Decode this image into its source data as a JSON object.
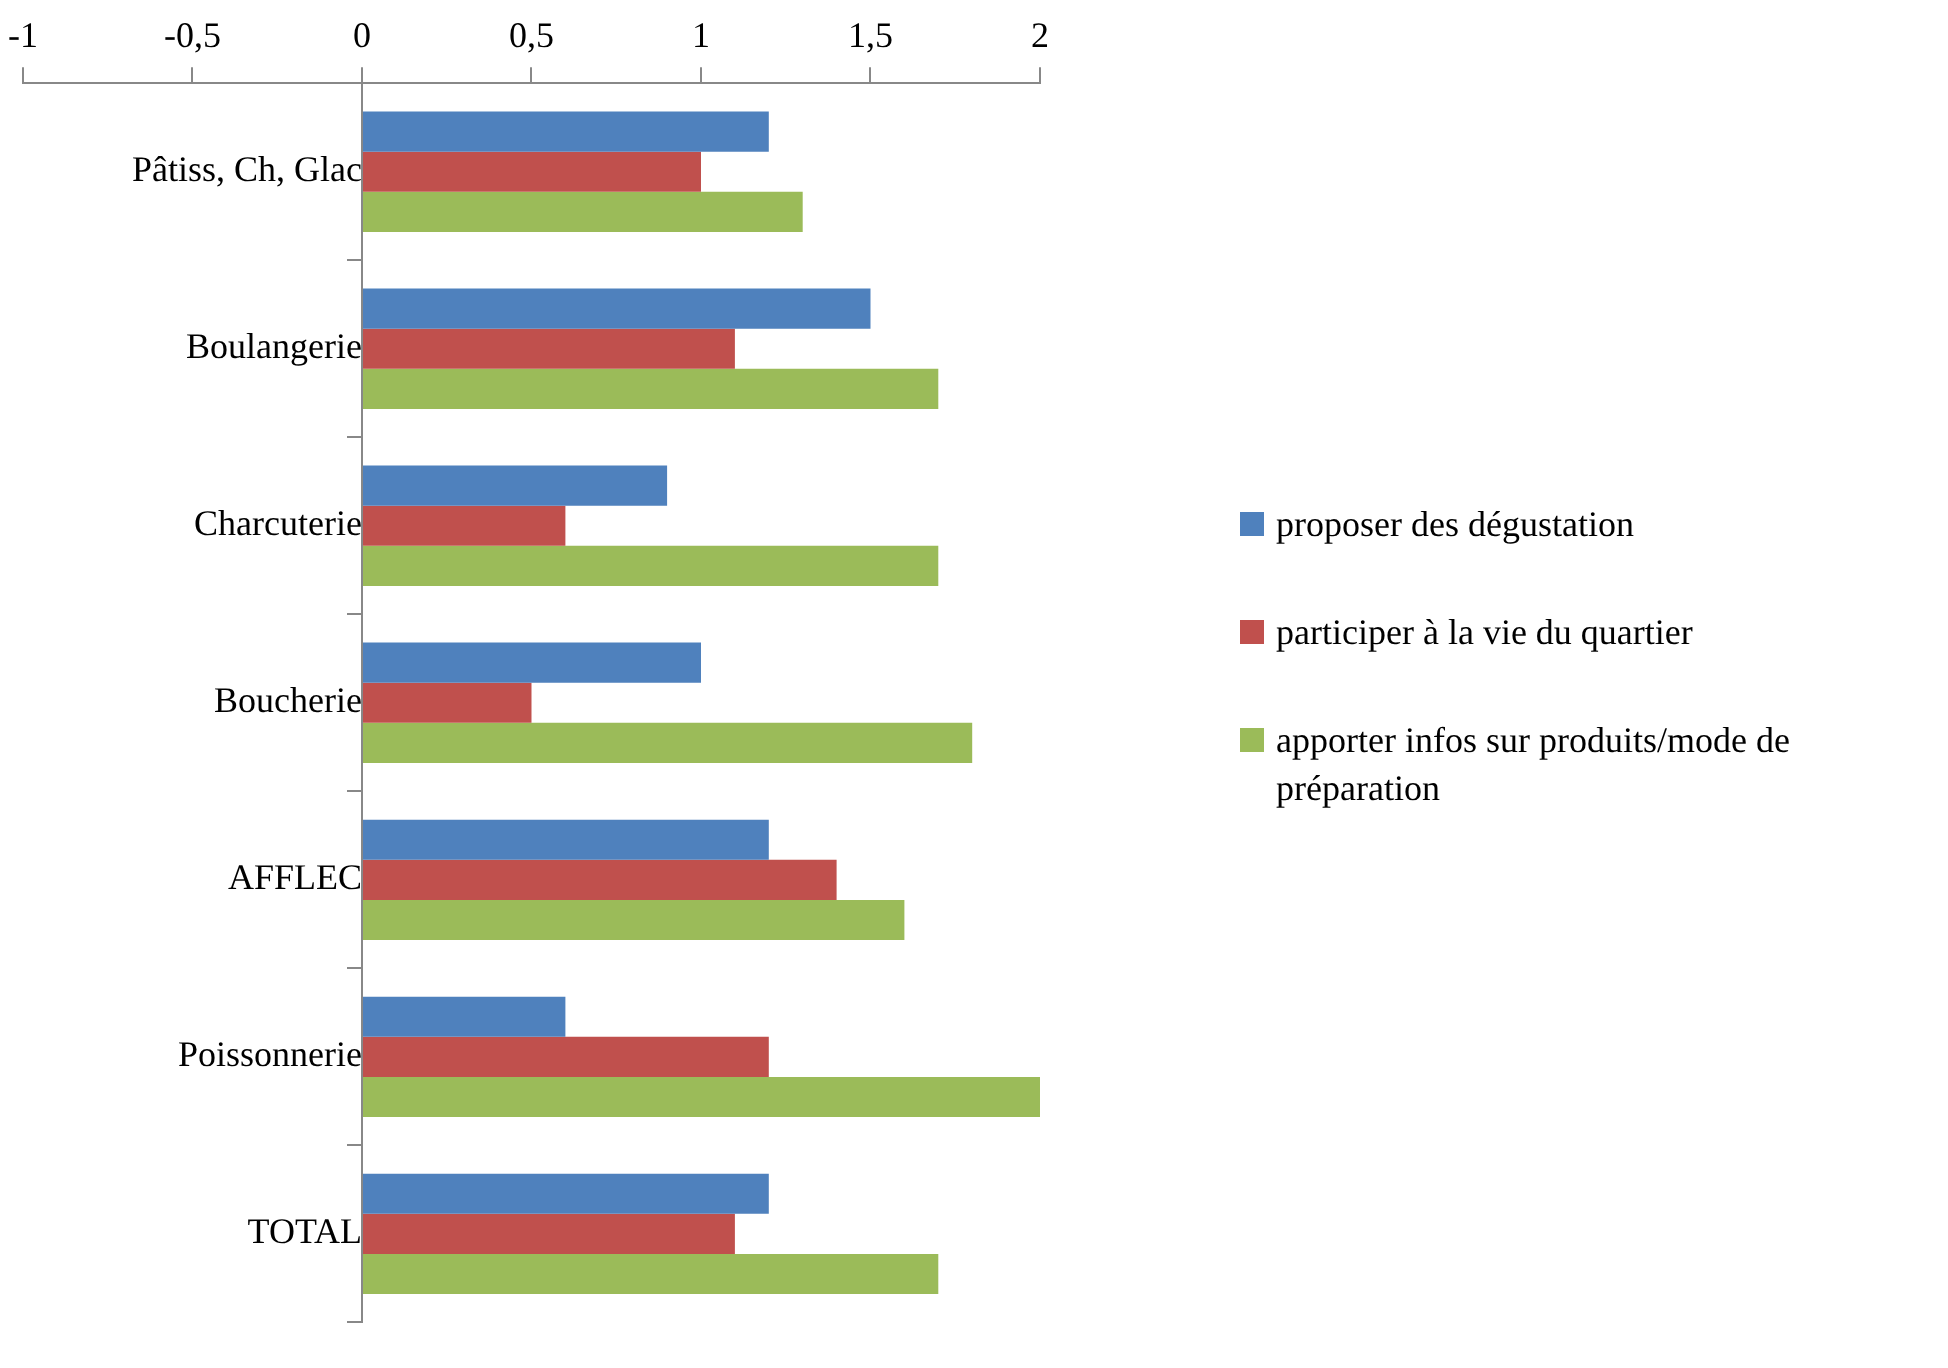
{
  "chart_data": {
    "type": "bar",
    "orientation": "horizontal",
    "categories": [
      "Pâtiss, Ch, Glac",
      "Boulangerie",
      "Charcuterie",
      "Boucherie",
      "AFFLEC",
      "Poissonnerie",
      "TOTAL"
    ],
    "series": [
      {
        "name": "proposer des dégustation",
        "color": "#4f81bd",
        "values": [
          1.2,
          1.5,
          0.9,
          1.0,
          1.2,
          0.6,
          1.2
        ]
      },
      {
        "name": "participer à la vie du quartier",
        "color": "#c0504d",
        "values": [
          1.0,
          1.1,
          0.6,
          0.5,
          1.4,
          1.2,
          1.1
        ]
      },
      {
        "name": "apporter infos sur produits/mode de préparation",
        "color": "#9bbb59",
        "values": [
          1.3,
          1.7,
          1.7,
          1.8,
          1.6,
          2.0,
          1.7
        ]
      }
    ],
    "xlim": [
      -1,
      2
    ],
    "xticks": [
      -1,
      {
        "value": -0.5,
        "label": "-0,5"
      },
      0,
      {
        "value": 0.5,
        "label": "0,5"
      },
      1,
      {
        "value": 1.5,
        "label": "1,5"
      },
      2
    ],
    "grid": false,
    "legend": "right"
  }
}
